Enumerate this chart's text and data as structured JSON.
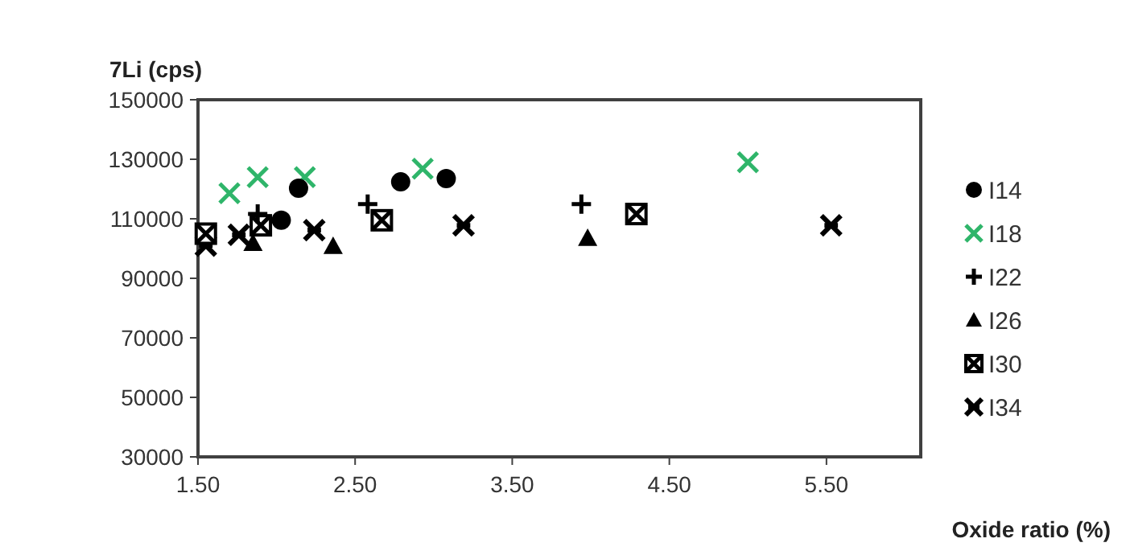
{
  "chart_data": {
    "type": "scatter",
    "xlabel": "Oxide ratio (%)",
    "ylabel": "7Li (cps)",
    "xlim": [
      1.5,
      6.1
    ],
    "xticks": [
      {
        "value": 1.5,
        "label": "1.50"
      },
      {
        "value": 2.5,
        "label": "2.50"
      },
      {
        "value": 3.5,
        "label": "3.50"
      },
      {
        "value": 4.5,
        "label": "4.50"
      },
      {
        "value": 5.5,
        "label": "5.50"
      }
    ],
    "ylim": [
      30000,
      150000
    ],
    "yticks": [
      30000,
      50000,
      70000,
      90000,
      110000,
      130000,
      150000
    ],
    "grid": false,
    "legend": "right",
    "series": [
      {
        "name": "I14",
        "color": "#000000",
        "marker": "circle",
        "x": [
          2.03,
          2.14,
          2.79,
          3.08
        ],
        "values": [
          109500,
          120300,
          122400,
          123500
        ]
      },
      {
        "name": "I18",
        "color": "#2fb56a",
        "marker": "x",
        "x": [
          1.7,
          1.88,
          2.18,
          2.93,
          5.0
        ],
        "values": [
          118600,
          124000,
          124000,
          126800,
          129000
        ]
      },
      {
        "name": "I22",
        "color": "#000000",
        "marker": "plus",
        "x": [
          1.88,
          2.58,
          3.94
        ],
        "values": [
          111600,
          114900,
          114900
        ]
      },
      {
        "name": "I26",
        "color": "#000000",
        "marker": "triangle",
        "x": [
          1.85,
          2.36,
          3.98
        ],
        "values": [
          101800,
          100800,
          103500
        ]
      },
      {
        "name": "I30",
        "color": "#000000",
        "marker": "square",
        "x": [
          1.55,
          1.9,
          2.67,
          4.29
        ],
        "values": [
          105000,
          107800,
          109500,
          111600
        ]
      },
      {
        "name": "I34",
        "color": "#000000",
        "marker": "cross",
        "x": [
          1.55,
          1.76,
          2.24,
          3.19,
          5.53
        ],
        "values": [
          101000,
          104600,
          106200,
          107800,
          107800
        ]
      }
    ]
  }
}
